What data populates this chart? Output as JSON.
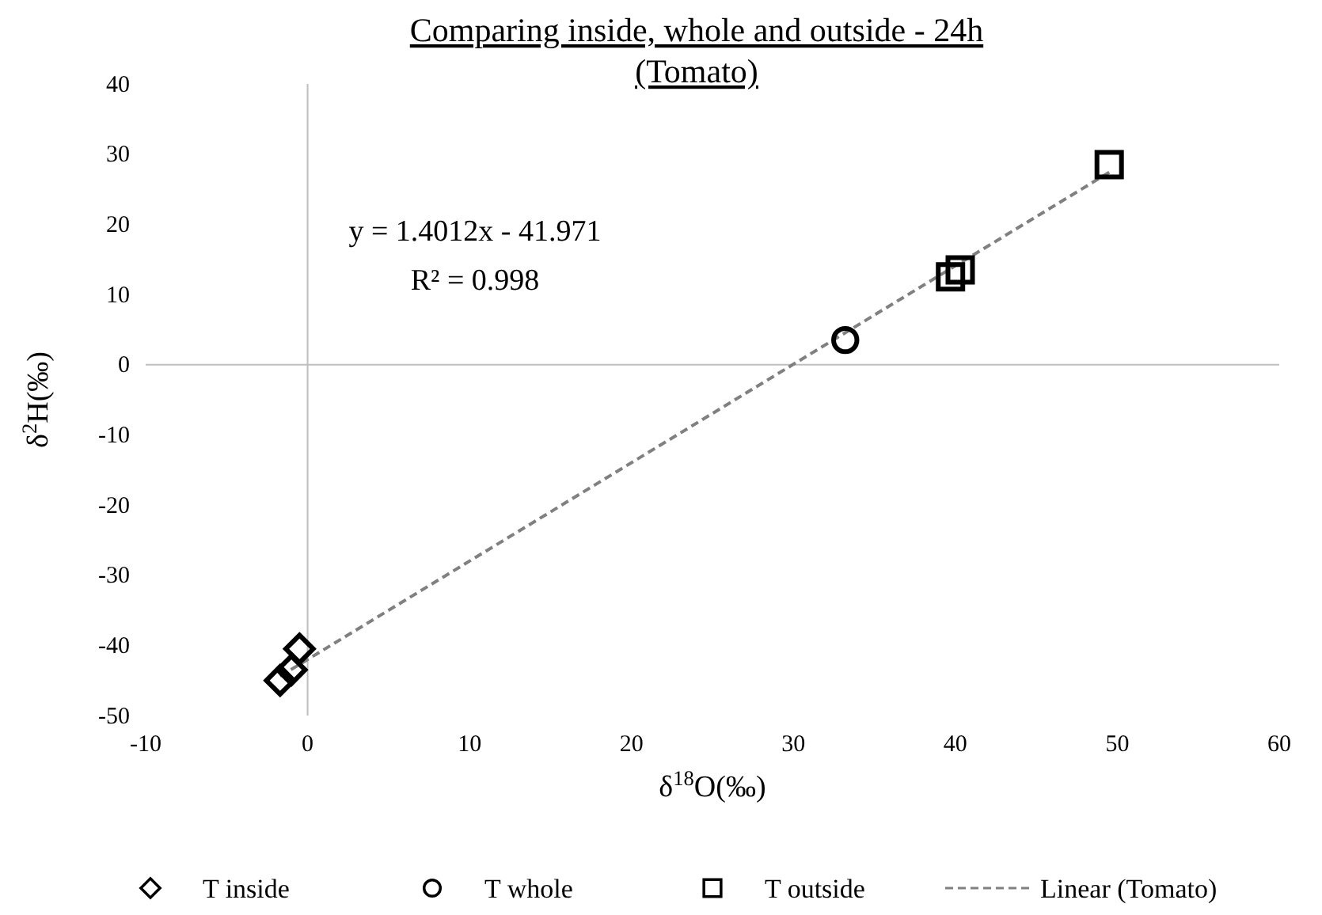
{
  "chart_data": {
    "type": "scatter",
    "title": "Comparing inside, whole and outside - 24h\n(Tomato)",
    "xlabel": "δ$^{18}$O(‰)",
    "ylabel": "δ$^{2}$H(‰)",
    "xlim": [
      -10,
      60
    ],
    "xticks": [
      -10,
      0,
      10,
      20,
      30,
      40,
      50,
      60
    ],
    "ylim": [
      -50,
      40
    ],
    "yticks": [
      -50,
      -40,
      -30,
      -20,
      -10,
      0,
      10,
      20,
      30,
      40
    ],
    "legend": "bottom",
    "annotations": [
      "y = 1.4012x - 41.971",
      "R² = 0.998"
    ],
    "series": [
      {
        "name": "T inside",
        "marker": "diamond",
        "color": "#000000",
        "x": [
          -0.5,
          -1,
          -1.7
        ],
        "values": [
          -40.5,
          -43.5,
          -45
        ]
      },
      {
        "name": "T whole",
        "marker": "circle",
        "color": "#000000",
        "x": [
          33.2
        ],
        "values": [
          3.5
        ]
      },
      {
        "name": "T outside",
        "marker": "square",
        "color": "#000000",
        "x": [
          39.7,
          40.3,
          49.5
        ],
        "values": [
          12.5,
          13.5,
          28.5
        ]
      },
      {
        "name": "Linear (Tomato)",
        "type": "line",
        "line_style": "dashed",
        "marker": "none",
        "color": "#808080",
        "x": [
          -1.7,
          49.5
        ],
        "values": [
          -44.4,
          27.4
        ]
      }
    ]
  }
}
